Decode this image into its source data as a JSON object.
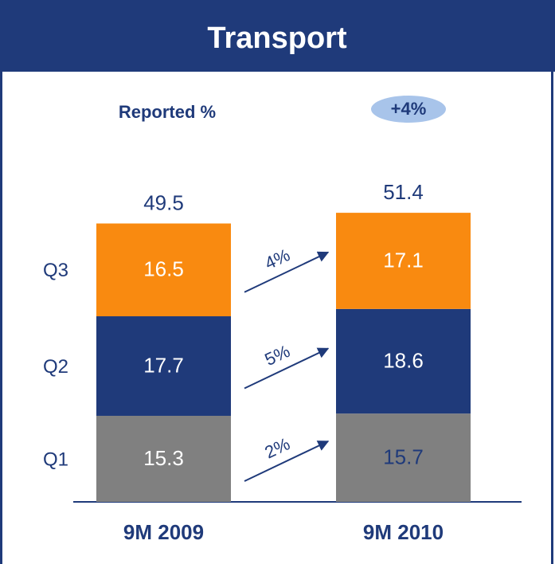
{
  "chart_data": {
    "type": "stacked_bar",
    "title": "Transport",
    "subtitle": "Reported %",
    "change": "+4%",
    "categories": [
      "9M 2009",
      "9M 2010"
    ],
    "series": [
      {
        "name": "Q1",
        "color": "#808080",
        "label_colors": [
          "#ffffff",
          "#1f3a7a"
        ],
        "values": [
          15.3,
          15.7
        ],
        "growth": "2%"
      },
      {
        "name": "Q2",
        "color": "#1f3a7a",
        "label_colors": [
          "#ffffff",
          "#ffffff"
        ],
        "values": [
          17.7,
          18.6
        ],
        "growth": "5%"
      },
      {
        "name": "Q3",
        "color": "#f98a10",
        "label_colors": [
          "#ffffff",
          "#ffffff"
        ],
        "values": [
          16.5,
          17.1
        ],
        "growth": "4%"
      }
    ],
    "totals": [
      49.5,
      51.4
    ]
  }
}
